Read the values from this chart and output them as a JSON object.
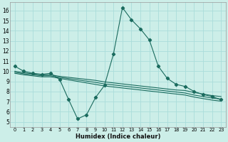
{
  "title": "",
  "xlabel": "Humidex (Indice chaleur)",
  "bg_color": "#cceee8",
  "grid_color": "#aaddda",
  "line_color": "#1a6b5e",
  "xlim": [
    -0.5,
    23.5
  ],
  "ylim": [
    4.5,
    16.8
  ],
  "xticks": [
    0,
    1,
    2,
    3,
    4,
    5,
    6,
    7,
    8,
    9,
    10,
    11,
    12,
    13,
    14,
    15,
    16,
    17,
    18,
    19,
    20,
    21,
    22,
    23
  ],
  "yticks": [
    5,
    6,
    7,
    8,
    9,
    10,
    11,
    12,
    13,
    14,
    15,
    16
  ],
  "lines": [
    {
      "x": [
        0,
        1,
        2,
        3,
        4,
        5,
        6,
        7,
        8,
        9,
        10,
        11,
        12,
        13,
        14,
        15,
        16,
        17,
        18,
        19,
        20,
        21,
        22,
        23
      ],
      "y": [
        10.5,
        10.0,
        9.8,
        9.7,
        9.8,
        9.2,
        7.2,
        5.3,
        5.7,
        7.4,
        8.6,
        11.7,
        16.3,
        15.1,
        14.2,
        13.1,
        10.5,
        9.3,
        8.7,
        8.5,
        8.0,
        7.7,
        7.5,
        7.2
      ],
      "marker": true
    },
    {
      "x": [
        0,
        1,
        2,
        3,
        4,
        5,
        9,
        10,
        11,
        12,
        13,
        14,
        15,
        16,
        17,
        18,
        19,
        20,
        21,
        22,
        23
      ],
      "y": [
        10.0,
        9.85,
        9.75,
        9.65,
        9.65,
        9.5,
        9.1,
        8.95,
        8.85,
        8.75,
        8.65,
        8.55,
        8.45,
        8.35,
        8.25,
        8.15,
        8.1,
        7.9,
        7.75,
        7.6,
        7.5
      ],
      "marker": false
    },
    {
      "x": [
        0,
        1,
        2,
        3,
        4,
        5,
        9,
        10,
        11,
        12,
        13,
        14,
        15,
        16,
        17,
        18,
        19,
        20,
        21,
        22,
        23
      ],
      "y": [
        9.9,
        9.75,
        9.65,
        9.55,
        9.55,
        9.4,
        8.9,
        8.75,
        8.65,
        8.55,
        8.45,
        8.35,
        8.25,
        8.15,
        8.05,
        7.95,
        7.85,
        7.65,
        7.5,
        7.35,
        7.25
      ],
      "marker": false
    },
    {
      "x": [
        0,
        1,
        2,
        3,
        4,
        5,
        9,
        10,
        11,
        12,
        13,
        14,
        15,
        16,
        17,
        18,
        19,
        20,
        21,
        22,
        23
      ],
      "y": [
        9.8,
        9.65,
        9.55,
        9.45,
        9.45,
        9.3,
        8.7,
        8.55,
        8.45,
        8.35,
        8.25,
        8.15,
        8.05,
        7.95,
        7.85,
        7.75,
        7.65,
        7.45,
        7.3,
        7.15,
        7.05
      ],
      "marker": false
    }
  ]
}
